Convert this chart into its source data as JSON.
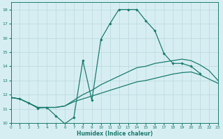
{
  "xlabel": "Humidex (Indice chaleur)",
  "bg_color": "#d6eef2",
  "line_color": "#1a7a6e",
  "grid_color": "#b8d8dc",
  "xlim": [
    0,
    23
  ],
  "ylim": [
    10,
    18.5
  ],
  "yticks": [
    10,
    11,
    12,
    13,
    14,
    15,
    16,
    17,
    18
  ],
  "xticks": [
    0,
    1,
    2,
    3,
    4,
    5,
    6,
    7,
    8,
    9,
    10,
    11,
    12,
    13,
    14,
    15,
    16,
    17,
    18,
    19,
    20,
    21,
    22,
    23
  ],
  "line1_x": [
    0,
    1,
    2,
    3,
    4,
    5,
    6,
    7,
    8,
    9,
    10,
    11,
    12,
    13,
    14,
    15,
    16,
    17,
    18,
    19,
    20,
    21
  ],
  "line1_y": [
    11.8,
    11.7,
    11.4,
    11.05,
    11.1,
    10.5,
    9.95,
    10.4,
    14.4,
    11.6,
    15.9,
    17.0,
    18.0,
    18.0,
    18.0,
    17.2,
    16.5,
    14.9,
    14.2,
    14.2,
    14.0,
    13.5
  ],
  "line2_x": [
    0,
    1,
    2,
    3,
    4,
    5,
    6,
    7,
    8,
    9,
    10,
    11,
    12,
    13,
    14,
    15,
    16,
    17,
    18,
    19,
    20,
    21,
    22,
    23
  ],
  "line2_y": [
    11.8,
    11.7,
    11.4,
    11.1,
    11.1,
    11.1,
    11.2,
    11.6,
    12.0,
    12.3,
    12.7,
    13.0,
    13.3,
    13.6,
    13.9,
    14.0,
    14.2,
    14.3,
    14.4,
    14.5,
    14.4,
    14.1,
    13.7,
    13.0
  ],
  "line3_x": [
    0,
    1,
    2,
    3,
    4,
    5,
    6,
    7,
    8,
    9,
    10,
    11,
    12,
    13,
    14,
    15,
    16,
    17,
    18,
    19,
    20,
    21,
    22,
    23
  ],
  "line3_y": [
    11.8,
    11.7,
    11.4,
    11.1,
    11.1,
    11.1,
    11.2,
    11.5,
    11.7,
    11.9,
    12.1,
    12.3,
    12.5,
    12.7,
    12.9,
    13.0,
    13.15,
    13.3,
    13.45,
    13.55,
    13.6,
    13.4,
    13.1,
    12.8
  ]
}
